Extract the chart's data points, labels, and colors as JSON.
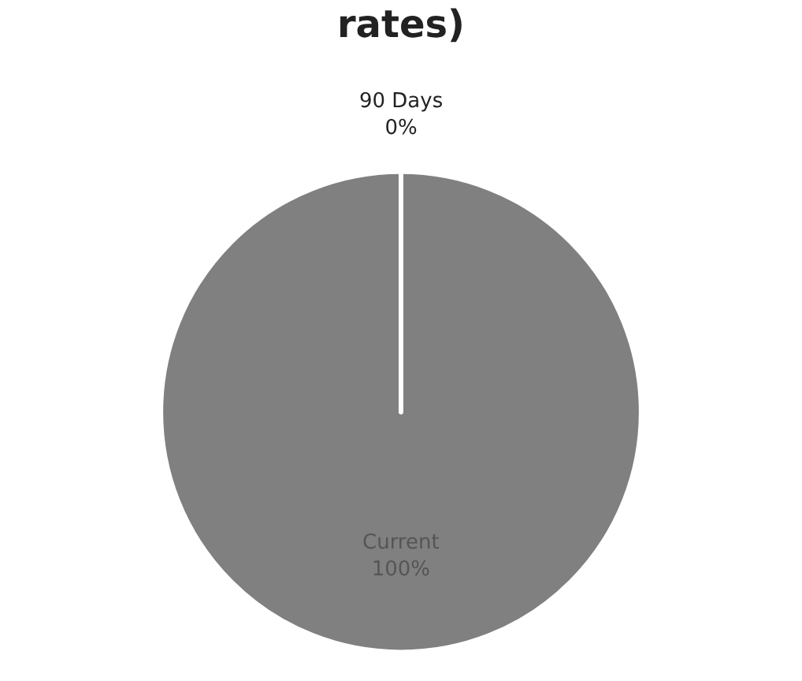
{
  "chart_data": {
    "type": "pie",
    "title": "rates)",
    "categories": [
      "Current",
      "90 Days"
    ],
    "values": [
      100,
      0
    ],
    "colors": [
      "#808080",
      "#808080"
    ],
    "value_labels": [
      "100%",
      "0%"
    ]
  }
}
